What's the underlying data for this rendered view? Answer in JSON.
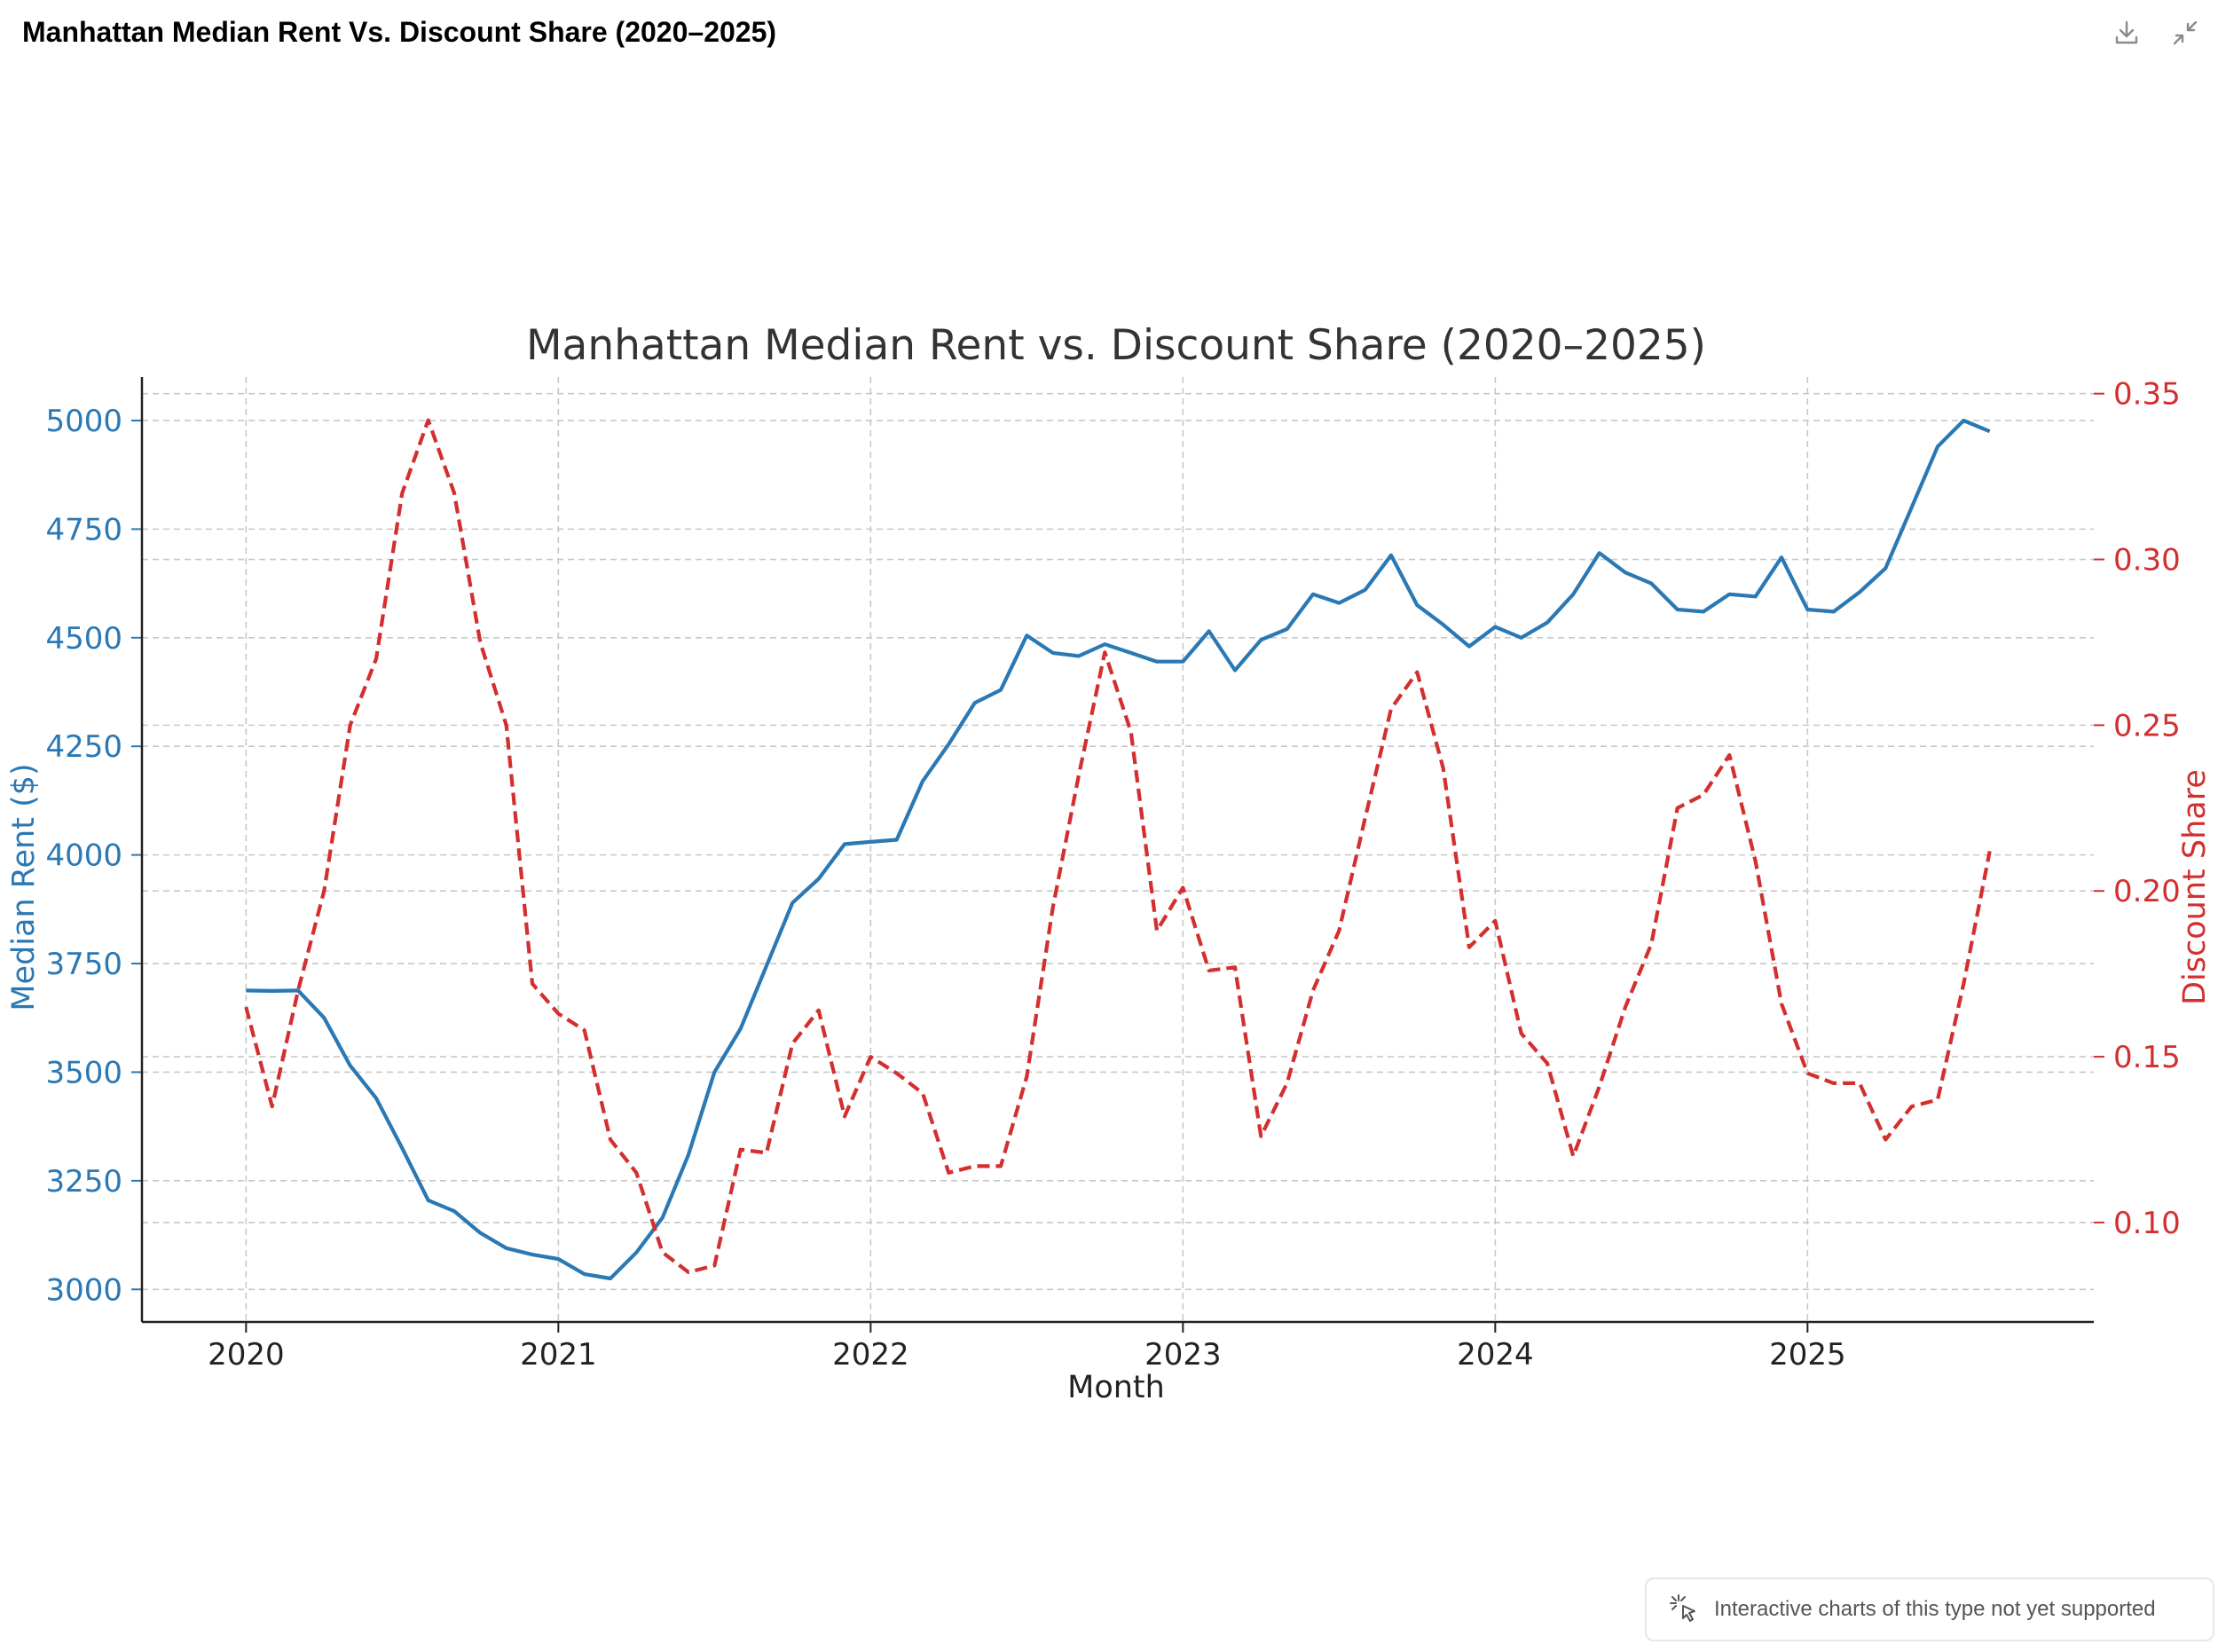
{
  "window": {
    "title": "Manhattan Median Rent Vs. Discount Share (2020–2025)",
    "icons": [
      "download-icon",
      "collapse-icon"
    ]
  },
  "notice": {
    "icon": "cursor-sparkle-icon",
    "text": "Interactive charts of this type not yet supported"
  },
  "chart_data": {
    "type": "line",
    "title": "Manhattan Median Rent vs. Discount Share (2020–2025)",
    "xlabel": "Month",
    "ylabel_left": "Median Rent ($)",
    "ylabel_right": "Discount Share",
    "x_ticks": [
      "2020",
      "2021",
      "2022",
      "2023",
      "2024",
      "2025"
    ],
    "y_left_ticks": [
      "3000",
      "3250",
      "3500",
      "3750",
      "4000",
      "4250",
      "4500",
      "4750",
      "5000"
    ],
    "y_right_ticks": [
      "0.10",
      "0.15",
      "0.20",
      "0.25",
      "0.30",
      "0.35"
    ],
    "x_range": [
      "2019-09",
      "2025-12"
    ],
    "y_left_range": [
      2925,
      5100
    ],
    "y_right_range": [
      0.07,
      0.355
    ],
    "grid": true,
    "colors": {
      "rent": "#2a78b4",
      "discount": "#d32f2f"
    },
    "x": [
      "2020-01",
      "2020-02",
      "2020-03",
      "2020-04",
      "2020-05",
      "2020-06",
      "2020-07",
      "2020-08",
      "2020-09",
      "2020-10",
      "2020-11",
      "2020-12",
      "2021-01",
      "2021-02",
      "2021-03",
      "2021-04",
      "2021-05",
      "2021-06",
      "2021-07",
      "2021-08",
      "2021-09",
      "2021-10",
      "2021-11",
      "2021-12",
      "2022-01",
      "2022-02",
      "2022-03",
      "2022-04",
      "2022-05",
      "2022-06",
      "2022-07",
      "2022-08",
      "2022-09",
      "2022-10",
      "2022-11",
      "2022-12",
      "2023-01",
      "2023-02",
      "2023-03",
      "2023-04",
      "2023-05",
      "2023-06",
      "2023-07",
      "2023-08",
      "2023-09",
      "2023-10",
      "2023-11",
      "2023-12",
      "2024-01",
      "2024-02",
      "2024-03",
      "2024-04",
      "2024-05",
      "2024-06",
      "2024-07",
      "2024-08",
      "2024-09",
      "2024-10",
      "2024-11",
      "2024-12",
      "2025-01",
      "2025-02",
      "2025-03",
      "2025-04",
      "2025-05",
      "2025-06",
      "2025-07",
      "2025-08"
    ],
    "series": [
      {
        "axis": "left",
        "style": "solid",
        "values": [
          3688,
          3687,
          3688,
          3625,
          3515,
          3440,
          3325,
          3205,
          3180,
          3130,
          3095,
          3080,
          3070,
          3035,
          3025,
          3085,
          3165,
          3310,
          3500,
          3600,
          3745,
          3890,
          3945,
          4025,
          4030,
          4035,
          4170,
          4255,
          4350,
          4380,
          4505,
          4465,
          4458,
          4485,
          4465,
          4445,
          4445,
          4515,
          4425,
          4495,
          4520,
          4600,
          4580,
          4610,
          4690,
          4575,
          4530,
          4480,
          4525,
          4500,
          4535,
          4600,
          4695,
          4650,
          4625,
          4565,
          4560,
          4600,
          4595,
          4685,
          4565,
          4560,
          4605,
          4660,
          4800,
          4940,
          5000,
          4975
        ]
      },
      {
        "axis": "right",
        "style": "dashed",
        "values": [
          0.165,
          0.135,
          0.17,
          0.2,
          0.25,
          0.27,
          0.32,
          0.342,
          0.32,
          0.275,
          0.25,
          0.172,
          0.163,
          0.158,
          0.125,
          0.115,
          0.091,
          0.085,
          0.087,
          0.122,
          0.121,
          0.154,
          0.164,
          0.132,
          0.15,
          0.145,
          0.139,
          0.115,
          0.117,
          0.117,
          0.144,
          0.195,
          0.235,
          0.272,
          0.248,
          0.188,
          0.201,
          0.176,
          0.177,
          0.126,
          0.142,
          0.17,
          0.188,
          0.222,
          0.255,
          0.266,
          0.237,
          0.183,
          0.191,
          0.157,
          0.148,
          0.12,
          0.141,
          0.165,
          0.184,
          0.225,
          0.229,
          0.241,
          0.209,
          0.166,
          0.145,
          0.142,
          0.142,
          0.125,
          0.135,
          0.137,
          0.172,
          0.212
        ]
      }
    ]
  }
}
